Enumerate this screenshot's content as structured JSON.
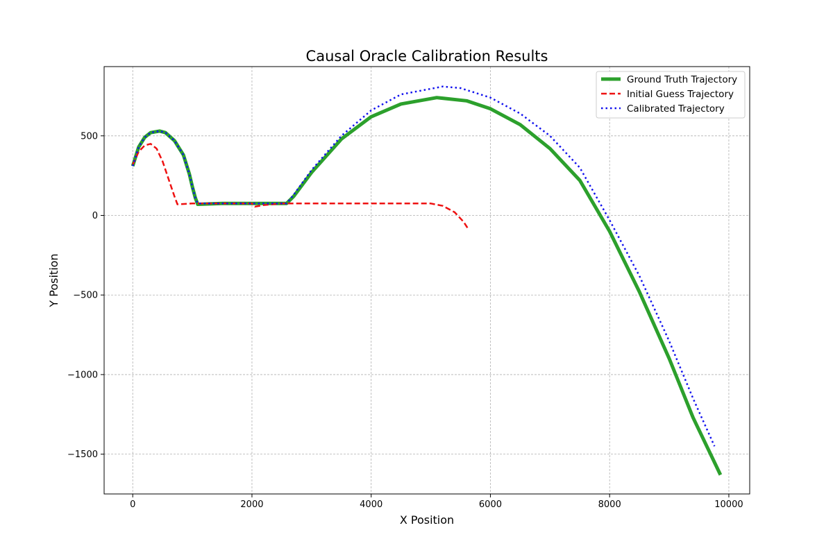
{
  "chart_data": {
    "type": "line",
    "title": "Causal Oracle Calibration Results",
    "xlabel": "X Position",
    "ylabel": "Y Position",
    "xlim": [
      -480,
      10350
    ],
    "ylim": [
      -1750,
      935
    ],
    "xticks": [
      0,
      2000,
      4000,
      6000,
      8000,
      10000
    ],
    "xtick_labels": [
      "0",
      "2000",
      "4000",
      "6000",
      "8000",
      "10000"
    ],
    "yticks": [
      -1500,
      -1000,
      -500,
      0,
      500
    ],
    "ytick_labels": [
      "−1500",
      "−1000",
      "−500",
      "0",
      "500"
    ],
    "grid": true,
    "legend_position": "top-right",
    "series": [
      {
        "name": "Ground Truth Trajectory",
        "color": "#2ca02c",
        "style": "solid",
        "points": [
          [
            0,
            310
          ],
          [
            100,
            430
          ],
          [
            200,
            490
          ],
          [
            300,
            520
          ],
          [
            450,
            530
          ],
          [
            550,
            520
          ],
          [
            700,
            470
          ],
          [
            850,
            380
          ],
          [
            950,
            260
          ],
          [
            1000,
            180
          ],
          [
            1050,
            110
          ],
          [
            1090,
            70
          ],
          [
            1500,
            75
          ],
          [
            2000,
            75
          ],
          [
            2580,
            75
          ],
          [
            2700,
            120
          ],
          [
            3000,
            270
          ],
          [
            3500,
            480
          ],
          [
            4000,
            620
          ],
          [
            4500,
            700
          ],
          [
            5100,
            740
          ],
          [
            5600,
            720
          ],
          [
            6000,
            670
          ],
          [
            6500,
            570
          ],
          [
            7000,
            420
          ],
          [
            7500,
            220
          ],
          [
            8000,
            -100
          ],
          [
            8500,
            -480
          ],
          [
            9000,
            -900
          ],
          [
            9400,
            -1270
          ],
          [
            9860,
            -1630
          ]
        ]
      },
      {
        "name": "Initial Guess Trajectory",
        "color": "#ee1111",
        "style": "dashed",
        "points": [
          [
            0,
            320
          ],
          [
            100,
            400
          ],
          [
            200,
            440
          ],
          [
            300,
            450
          ],
          [
            400,
            420
          ],
          [
            500,
            340
          ],
          [
            600,
            230
          ],
          [
            700,
            120
          ],
          [
            750,
            70
          ],
          [
            1000,
            75
          ],
          [
            1500,
            75
          ],
          [
            2000,
            75
          ],
          [
            2050,
            55
          ],
          [
            2200,
            65
          ],
          [
            2500,
            75
          ],
          [
            3000,
            75
          ],
          [
            4000,
            75
          ],
          [
            5000,
            75
          ],
          [
            5200,
            60
          ],
          [
            5400,
            20
          ],
          [
            5550,
            -40
          ],
          [
            5620,
            -80
          ]
        ]
      },
      {
        "name": "Calibrated Trajectory",
        "color": "#1111ee",
        "style": "dotted",
        "points": [
          [
            0,
            310
          ],
          [
            100,
            430
          ],
          [
            200,
            490
          ],
          [
            300,
            520
          ],
          [
            450,
            530
          ],
          [
            550,
            520
          ],
          [
            700,
            470
          ],
          [
            850,
            380
          ],
          [
            950,
            260
          ],
          [
            1000,
            180
          ],
          [
            1050,
            110
          ],
          [
            1090,
            75
          ],
          [
            1500,
            75
          ],
          [
            2000,
            75
          ],
          [
            2580,
            75
          ],
          [
            2700,
            130
          ],
          [
            3000,
            285
          ],
          [
            3500,
            500
          ],
          [
            4000,
            660
          ],
          [
            4500,
            760
          ],
          [
            5200,
            810
          ],
          [
            5500,
            800
          ],
          [
            6000,
            740
          ],
          [
            6500,
            640
          ],
          [
            7000,
            500
          ],
          [
            7500,
            300
          ],
          [
            8000,
            -30
          ],
          [
            8500,
            -380
          ],
          [
            9000,
            -790
          ],
          [
            9400,
            -1150
          ],
          [
            9760,
            -1450
          ]
        ]
      }
    ]
  }
}
